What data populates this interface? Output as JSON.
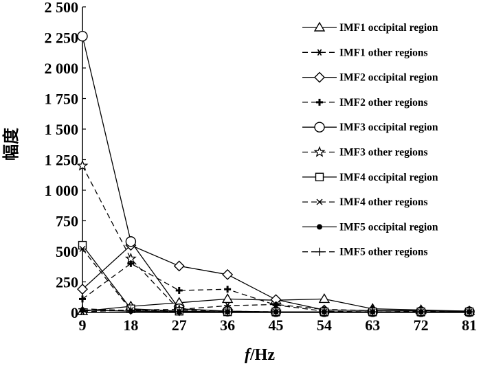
{
  "chart_data": {
    "type": "line",
    "title": "",
    "xlabel_italic": "f",
    "xlabel_rest": "/Hz",
    "ylabel": "幅度",
    "x": [
      9,
      18,
      27,
      36,
      45,
      54,
      63,
      72,
      81
    ],
    "xlim": [
      9,
      81
    ],
    "ylim": [
      0,
      2500
    ],
    "xticks": [
      "9",
      "18",
      "27",
      "36",
      "45",
      "54",
      "63",
      "72",
      "81"
    ],
    "yticks": [
      0,
      250,
      500,
      750,
      1000,
      1250,
      1500,
      1750,
      2000,
      2250,
      2500
    ],
    "yticklabels": [
      "0",
      "250",
      "500",
      "750",
      "1 000",
      "1 250",
      "1 500",
      "1 750",
      "2 000",
      "2 250",
      "2 500"
    ],
    "grid": false,
    "legend_position": "right",
    "series": [
      {
        "name": "IMF1 occipital region",
        "marker": "triangle",
        "dash": "solid",
        "values": [
          10,
          50,
          80,
          110,
          100,
          110,
          30,
          20,
          10
        ]
      },
      {
        "name": "IMF1 other regions",
        "marker": "asterisk",
        "dash": "dashed",
        "values": [
          5,
          20,
          25,
          55,
          65,
          25,
          15,
          10,
          5
        ]
      },
      {
        "name": "IMF2 occipital region",
        "marker": "diamond",
        "dash": "solid",
        "values": [
          190,
          550,
          380,
          310,
          105,
          20,
          15,
          15,
          10
        ]
      },
      {
        "name": "IMF2 other regions",
        "marker": "cross-bold",
        "dash": "dashed",
        "values": [
          110,
          400,
          180,
          190,
          60,
          10,
          5,
          5,
          5
        ]
      },
      {
        "name": "IMF3 occipital region",
        "marker": "circle",
        "dash": "solid",
        "values": [
          2260,
          580,
          30,
          10,
          5,
          5,
          5,
          5,
          5
        ]
      },
      {
        "name": "IMF3 other regions",
        "marker": "star",
        "dash": "dashed",
        "values": [
          1200,
          440,
          20,
          10,
          5,
          5,
          5,
          5,
          5
        ]
      },
      {
        "name": "IMF4 occipital region",
        "marker": "square",
        "dash": "solid",
        "values": [
          550,
          30,
          10,
          5,
          5,
          5,
          5,
          5,
          5
        ]
      },
      {
        "name": "IMF4 other regions",
        "marker": "x",
        "dash": "dashed",
        "values": [
          520,
          20,
          10,
          5,
          5,
          5,
          5,
          5,
          5
        ]
      },
      {
        "name": "IMF5 occipital region",
        "marker": "dot",
        "dash": "solid",
        "values": [
          20,
          10,
          5,
          5,
          5,
          5,
          5,
          5,
          5
        ]
      },
      {
        "name": "IMF5 other regions",
        "marker": "plus",
        "dash": "dashed",
        "values": [
          30,
          15,
          5,
          5,
          5,
          5,
          5,
          5,
          5
        ]
      }
    ]
  }
}
